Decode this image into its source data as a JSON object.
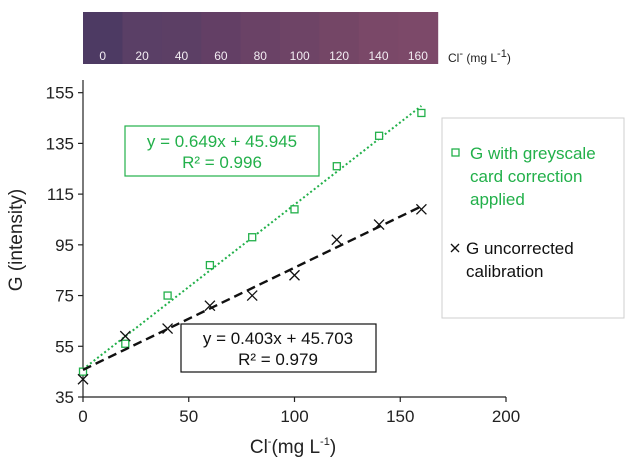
{
  "colors": {
    "corrected": "#22b04a",
    "uncorrected": "#111111",
    "axis": "#222222"
  },
  "strip": {
    "labels": [
      "0",
      "20",
      "40",
      "60",
      "80",
      "100",
      "120",
      "140",
      "160"
    ],
    "swatches": [
      "#4d3a63",
      "#5a3f66",
      "#5c3f65",
      "#633f65",
      "#6a4266",
      "#6e4466",
      "#744666",
      "#7a4868",
      "#7c4969"
    ],
    "unit_prefix": "Cl",
    "unit_sup": "-",
    "unit_mid": " (mg L",
    "unit_sup2": "-1",
    "unit_suffix": ")"
  },
  "chart_data": {
    "type": "scatter",
    "xlabel_prefix": "Cl",
    "xlabel_sup": "-",
    "xlabel_mid": "(mg L",
    "xlabel_sup2": "-1",
    "xlabel_suffix": ")",
    "ylabel": "G (intensity)",
    "xlim": [
      0,
      200
    ],
    "ylim": [
      35,
      160
    ],
    "xticks": [
      0,
      50,
      100,
      150,
      200
    ],
    "yticks": [
      35,
      55,
      75,
      95,
      115,
      135,
      155
    ],
    "grid": false,
    "series": [
      {
        "name": "G with greyscale card correction applied",
        "marker": "square",
        "x": [
          0,
          20,
          40,
          60,
          80,
          100,
          120,
          140,
          160
        ],
        "y": [
          45,
          56,
          75,
          87,
          98,
          109,
          126,
          138,
          147
        ],
        "trend": {
          "slope": 0.649,
          "intercept": 45.945,
          "style": "dotted"
        },
        "equation": "y = 0.649x + 45.945",
        "r2": "R² = 0.996"
      },
      {
        "name": "G uncorrected calibration",
        "marker": "x",
        "x": [
          0,
          20,
          40,
          60,
          80,
          100,
          120,
          140,
          160
        ],
        "y": [
          42,
          59,
          62,
          71,
          75,
          83,
          97,
          103,
          109
        ],
        "trend": {
          "slope": 0.403,
          "intercept": 45.703,
          "style": "dashed"
        },
        "equation": "y = 0.403x + 45.703",
        "r2": "R² = 0.979"
      }
    ],
    "legend": {
      "position": "right",
      "entries": [
        {
          "lines": [
            "G with greyscale",
            "card correction",
            "applied"
          ]
        },
        {
          "lines": [
            "G uncorrected",
            "calibration"
          ]
        }
      ]
    }
  }
}
